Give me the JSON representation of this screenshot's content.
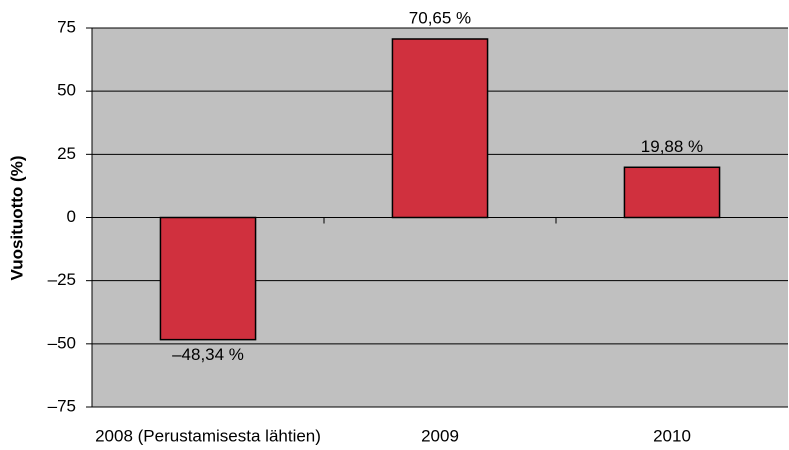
{
  "chart_data": {
    "type": "bar",
    "y_axis_label": "Vuosituotto (%)",
    "categories": [
      "2008 (Perustamisesta lähtien)",
      "2009",
      "2010"
    ],
    "values": [
      -48.34,
      70.65,
      19.88
    ],
    "value_labels": [
      "–48,34 %",
      "70,65 %",
      "19,88 %"
    ],
    "color": "#d0303e",
    "background": "#c0c0c0",
    "ylim": [
      -75,
      75
    ],
    "yticks": [
      {
        "value": -75,
        "label": "–75"
      },
      {
        "value": -50,
        "label": "–50"
      },
      {
        "value": -25,
        "label": "–25"
      },
      0,
      25,
      50,
      75
    ],
    "grid": true
  }
}
